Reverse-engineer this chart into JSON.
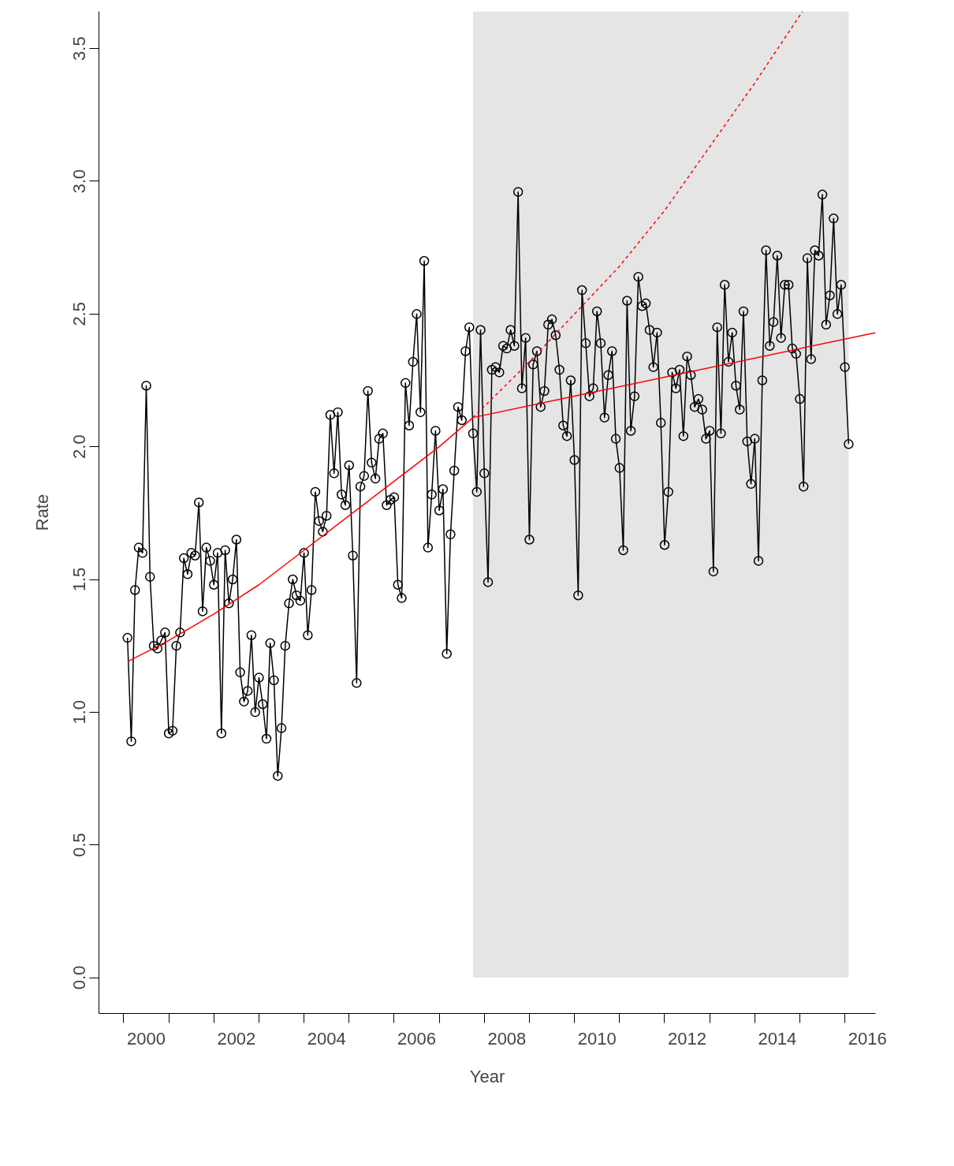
{
  "chart_data": {
    "type": "line",
    "xlabel": "Year",
    "ylabel": "Rate",
    "xlim": [
      1999.45,
      2016.68
    ],
    "ylim": [
      -0.135,
      3.64
    ],
    "xticks": [
      {
        "value": 2000,
        "label": null
      },
      {
        "value": 2001,
        "label": null
      },
      {
        "value": 2002,
        "label": null
      },
      {
        "value": 2003,
        "label": null
      },
      {
        "value": 2004,
        "label": null
      },
      {
        "value": 2005,
        "label": null
      },
      {
        "value": 2006,
        "label": null
      },
      {
        "value": 2007,
        "label": null
      },
      {
        "value": 2008,
        "label": null
      },
      {
        "value": 2009,
        "label": null
      },
      {
        "value": 2010,
        "label": null
      },
      {
        "value": 2011,
        "label": null
      },
      {
        "value": 2012,
        "label": null
      },
      {
        "value": 2013,
        "label": null
      },
      {
        "value": 2014,
        "label": null
      },
      {
        "value": 2015,
        "label": null
      },
      {
        "value": 2016,
        "label": null
      },
      {
        "value": 2000.5,
        "label": "2000"
      },
      {
        "value": 2002.5,
        "label": "2002"
      },
      {
        "value": 2004.5,
        "label": "2004"
      },
      {
        "value": 2006.5,
        "label": "2006"
      },
      {
        "value": 2008.5,
        "label": "2008"
      },
      {
        "value": 2010.5,
        "label": "2010"
      },
      {
        "value": 2012.5,
        "label": "2012"
      },
      {
        "value": 2014.5,
        "label": "2014"
      },
      {
        "value": 2016.5,
        "label": "2016"
      }
    ],
    "yticks": [
      {
        "value": 0,
        "label": "0.0"
      },
      {
        "value": 0.5,
        "label": "0.5"
      },
      {
        "value": 1,
        "label": "1.0"
      },
      {
        "value": 1.5,
        "label": "1.5"
      },
      {
        "value": 2,
        "label": "2.0"
      },
      {
        "value": 2.5,
        "label": "2.5"
      },
      {
        "value": 3,
        "label": "3.0"
      },
      {
        "value": 3.5,
        "label": "3.5"
      }
    ],
    "grid": false,
    "bands": [
      {
        "axis": "x",
        "from": 2007.75,
        "to": 2016.083,
        "color": "#e5e5e5"
      }
    ],
    "series": [
      {
        "color": "#000000",
        "marker": "circle",
        "line_style": "solid",
        "x": [
          2000.083,
          2000.167,
          2000.25,
          2000.333,
          2000.417,
          2000.5,
          2000.583,
          2000.667,
          2000.75,
          2000.833,
          2000.917,
          2001.0,
          2001.083,
          2001.167,
          2001.25,
          2001.333,
          2001.417,
          2001.5,
          2001.583,
          2001.667,
          2001.75,
          2001.833,
          2001.917,
          2002.0,
          2002.083,
          2002.167,
          2002.25,
          2002.333,
          2002.417,
          2002.5,
          2002.583,
          2002.667,
          2002.75,
          2002.833,
          2002.917,
          2003.0,
          2003.083,
          2003.167,
          2003.25,
          2003.333,
          2003.417,
          2003.5,
          2003.583,
          2003.667,
          2003.75,
          2003.833,
          2003.917,
          2004.0,
          2004.083,
          2004.167,
          2004.25,
          2004.333,
          2004.417,
          2004.5,
          2004.583,
          2004.667,
          2004.75,
          2004.833,
          2004.917,
          2005.0,
          2005.083,
          2005.167,
          2005.25,
          2005.333,
          2005.417,
          2005.5,
          2005.583,
          2005.667,
          2005.75,
          2005.833,
          2005.917,
          2006.0,
          2006.083,
          2006.167,
          2006.25,
          2006.333,
          2006.417,
          2006.5,
          2006.583,
          2006.667,
          2006.75,
          2006.833,
          2006.917,
          2007.0,
          2007.083,
          2007.167,
          2007.25,
          2007.333,
          2007.417,
          2007.5,
          2007.583,
          2007.667,
          2007.75,
          2007.833,
          2007.917,
          2008.0,
          2008.083,
          2008.167,
          2008.25,
          2008.333,
          2008.417,
          2008.5,
          2008.583,
          2008.667,
          2008.75,
          2008.833,
          2008.917,
          2009.0,
          2009.083,
          2009.167,
          2009.25,
          2009.333,
          2009.417,
          2009.5,
          2009.583,
          2009.667,
          2009.75,
          2009.833,
          2009.917,
          2010.0,
          2010.083,
          2010.167,
          2010.25,
          2010.333,
          2010.417,
          2010.5,
          2010.583,
          2010.667,
          2010.75,
          2010.833,
          2010.917,
          2011.0,
          2011.083,
          2011.167,
          2011.25,
          2011.333,
          2011.417,
          2011.5,
          2011.583,
          2011.667,
          2011.75,
          2011.833,
          2011.917,
          2012.0,
          2012.083,
          2012.167,
          2012.25,
          2012.333,
          2012.417,
          2012.5,
          2012.583,
          2012.667,
          2012.75,
          2012.833,
          2012.917,
          2013.0,
          2013.083,
          2013.167,
          2013.25,
          2013.333,
          2013.417,
          2013.5,
          2013.583,
          2013.667,
          2013.75,
          2013.833,
          2013.917,
          2014.0,
          2014.083,
          2014.167,
          2014.25,
          2014.333,
          2014.417,
          2014.5,
          2014.583,
          2014.667,
          2014.75,
          2014.833,
          2014.917,
          2015.0,
          2015.083,
          2015.167,
          2015.25,
          2015.333,
          2015.417,
          2015.5,
          2015.583,
          2015.667,
          2015.75,
          2015.833,
          2015.917,
          2016.0,
          2016.083
        ],
        "values": [
          1.28,
          0.89,
          1.46,
          1.62,
          1.6,
          2.23,
          1.51,
          1.25,
          1.24,
          1.27,
          1.3,
          0.92,
          0.93,
          1.25,
          1.3,
          1.58,
          1.52,
          1.6,
          1.59,
          1.79,
          1.38,
          1.62,
          1.57,
          1.48,
          1.6,
          0.92,
          1.61,
          1.41,
          1.5,
          1.65,
          1.15,
          1.04,
          1.08,
          1.29,
          1.0,
          1.13,
          1.03,
          0.9,
          1.26,
          1.12,
          0.76,
          0.94,
          1.25,
          1.41,
          1.5,
          1.44,
          1.42,
          1.6,
          1.29,
          1.46,
          1.83,
          1.72,
          1.68,
          1.74,
          2.12,
          1.9,
          2.13,
          1.82,
          1.78,
          1.93,
          1.59,
          1.11,
          1.85,
          1.89,
          2.21,
          1.94,
          1.88,
          2.03,
          2.05,
          1.78,
          1.8,
          1.81,
          1.48,
          1.43,
          2.24,
          2.08,
          2.32,
          2.5,
          2.13,
          2.7,
          1.62,
          1.82,
          2.06,
          1.76,
          1.84,
          1.22,
          1.67,
          1.91,
          2.15,
          2.1,
          2.36,
          2.45,
          2.05,
          1.83,
          2.44,
          1.9,
          1.49,
          2.29,
          2.3,
          2.28,
          2.38,
          2.37,
          2.44,
          2.38,
          2.96,
          2.22,
          2.41,
          1.65,
          2.31,
          2.36,
          2.15,
          2.21,
          2.46,
          2.48,
          2.42,
          2.29,
          2.08,
          2.04,
          2.25,
          1.95,
          1.44,
          2.59,
          2.39,
          2.19,
          2.22,
          2.51,
          2.39,
          2.11,
          2.27,
          2.36,
          2.03,
          1.92,
          1.61,
          2.55,
          2.06,
          2.19,
          2.64,
          2.53,
          2.54,
          2.44,
          2.3,
          2.43,
          2.09,
          1.63,
          1.83,
          2.28,
          2.22,
          2.29,
          2.04,
          2.34,
          2.27,
          2.15,
          2.18,
          2.14,
          2.03,
          2.06,
          1.53,
          2.45,
          2.05,
          2.61,
          2.32,
          2.43,
          2.23,
          2.14,
          2.51,
          2.02,
          1.86,
          2.03,
          1.57,
          2.25,
          2.74,
          2.38,
          2.47,
          2.72,
          2.41,
          2.61,
          2.61,
          2.37,
          2.35,
          2.18,
          1.85,
          2.71,
          2.33,
          2.74,
          2.72,
          2.95,
          2.46,
          2.57,
          2.86,
          2.5,
          2.61,
          2.3,
          2.01
        ]
      },
      {
        "color": "#ff0000",
        "marker": "none",
        "line_style": "solid",
        "x": [
          2000.083,
          2001,
          2002,
          2003,
          2004,
          2005,
          2006,
          2007,
          2007.75
        ],
        "values": [
          1.19,
          1.27,
          1.37,
          1.48,
          1.61,
          1.74,
          1.87,
          2.0,
          2.11
        ]
      },
      {
        "color": "#ff0000",
        "marker": "none",
        "line_style": "dashed",
        "x": [
          2007.75,
          2009,
          2010,
          2011,
          2012,
          2013,
          2014,
          2015.06
        ],
        "values": [
          2.11,
          2.32,
          2.5,
          2.68,
          2.89,
          3.13,
          3.37,
          3.64
        ]
      },
      {
        "color": "#ff0000",
        "marker": "none",
        "line_style": "solid",
        "x": [
          2007.75,
          2016.68
        ],
        "values": [
          2.11,
          2.43
        ]
      }
    ]
  }
}
